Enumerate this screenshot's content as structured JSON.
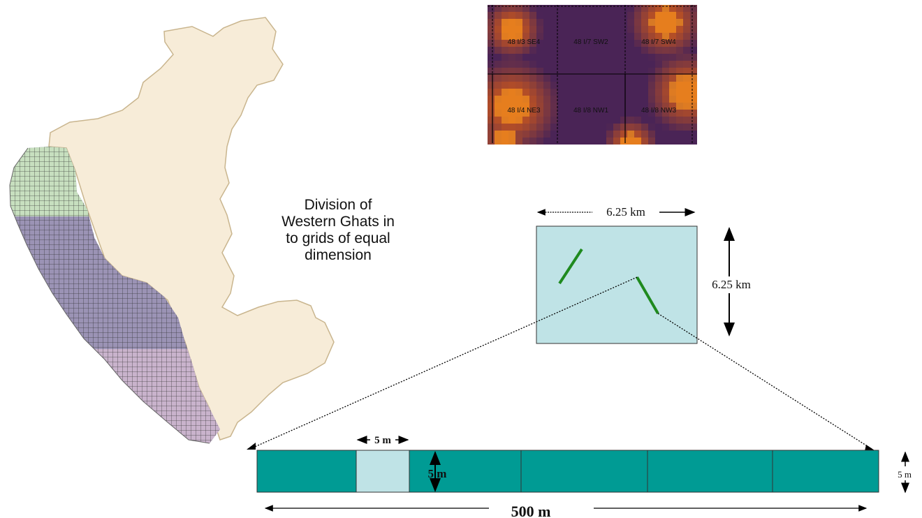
{
  "caption": {
    "lines": [
      "Division of",
      "Western Ghats in",
      "to grids of equal",
      "dimension"
    ]
  },
  "tile_inset": {
    "labels": [
      "48 I/3 SE4",
      "48 I/7 SW2",
      "48 I/7 SW4",
      "48 I/4 NE3",
      "48 I/8 NW1",
      "48 I/8 NW3"
    ],
    "colors": {
      "warm": "#c8561e",
      "cool": "#4a2456"
    }
  },
  "grid_cell": {
    "width_label": "6.25 km",
    "height_label": "6.25 km",
    "fill": "#bfe3e6",
    "transect_color": "#1f8a1f"
  },
  "transect": {
    "segment_width_label": "5 m",
    "segment_height_label": "5 m",
    "strip_height_label": "5 m",
    "length_label": "500 m",
    "fill": "#009b94",
    "highlight_fill": "#bfe3e6"
  },
  "map": {
    "land_color": "#f7ecd8",
    "north_grid_color": "#c7dfbf",
    "central_grid_color": "#9b93b5",
    "south_grid_color": "#c9b3cc"
  }
}
